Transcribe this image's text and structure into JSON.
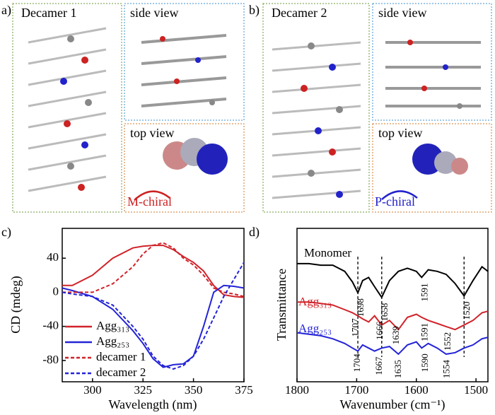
{
  "panel_a": {
    "letter": "a)",
    "main": "Decamer 1",
    "side": "side view",
    "top": "top view",
    "chirality": "M-chiral"
  },
  "panel_b": {
    "letter": "b)",
    "main": "Decamer 2",
    "side": "side view",
    "top": "top view",
    "chirality": "P-chiral"
  },
  "chart_data": [
    {
      "type": "line",
      "letter": "c)",
      "x_label": "Wavelength (nm)",
      "y_label": "CD (mdeg)",
      "x": [
        285,
        290,
        300,
        310,
        320,
        325,
        330,
        335,
        340,
        345,
        350,
        355,
        360,
        365,
        370,
        375
      ],
      "xlim": [
        285,
        375
      ],
      "xticks": [
        300,
        325,
        350,
        375
      ],
      "ylim": [
        -105,
        75
      ],
      "yticks": [
        40,
        0,
        -40,
        -80
      ],
      "legend": "lower left",
      "series": [
        {
          "name": "Agg₃₁₃",
          "color": "#d0232a",
          "dash": false,
          "values": [
            8,
            8,
            20,
            40,
            52,
            54,
            55,
            55,
            50,
            42,
            35,
            25,
            8,
            -3,
            -5,
            -6
          ]
        },
        {
          "name": "Agg₂₅₃",
          "color": "#2323d8",
          "dash": false,
          "values": [
            5,
            2,
            -5,
            -20,
            -45,
            -60,
            -78,
            -88,
            -85,
            -84,
            -75,
            -40,
            0,
            8,
            7,
            5
          ]
        },
        {
          "name": "decamer 1",
          "color": "#d0232a",
          "dash": true,
          "values": [
            0,
            0,
            0,
            10,
            30,
            45,
            55,
            58,
            52,
            40,
            32,
            20,
            5,
            0,
            -2,
            -5
          ]
        },
        {
          "name": "decamer 2",
          "color": "#2323d8",
          "dash": true,
          "values": [
            0,
            -2,
            -5,
            -15,
            -40,
            -55,
            -75,
            -86,
            -90,
            -86,
            -75,
            -55,
            -30,
            -5,
            15,
            35
          ]
        }
      ]
    },
    {
      "type": "line",
      "letter": "d)",
      "x_label": "Wavenumber (cm⁻¹)",
      "y_label": "Transmittance",
      "x": [
        1800,
        1780,
        1760,
        1740,
        1720,
        1707,
        1698,
        1690,
        1680,
        1670,
        1658,
        1645,
        1630,
        1615,
        1600,
        1591,
        1580,
        1565,
        1550,
        1535,
        1520,
        1505,
        1490,
        1480
      ],
      "xlim": [
        1800,
        1480
      ],
      "xticks": [
        1800,
        1700,
        1600,
        1500
      ],
      "ylim": [
        0,
        100
      ],
      "guides": [
        1698,
        1658,
        1520
      ],
      "series": [
        {
          "name": "Monomer",
          "color": "#000000",
          "values": [
            77,
            77,
            76,
            76,
            72,
            65,
            58,
            66,
            68,
            62,
            55,
            66,
            72,
            74,
            72,
            68,
            73,
            72,
            70,
            64,
            56,
            66,
            75,
            72
          ],
          "peaks": [
            1698,
            1658,
            1591,
            1520
          ]
        },
        {
          "name": "Agg₃₁₃",
          "color": "#d0232a",
          "values": [
            52,
            52,
            51,
            50,
            47,
            45,
            43,
            41,
            39,
            43,
            37,
            40,
            34,
            42,
            44,
            42,
            40,
            38,
            36,
            34,
            37,
            40,
            45,
            46
          ],
          "peaks": [
            1707,
            1666,
            1639,
            1591,
            1552
          ]
        },
        {
          "name": "Agg₂₅₃",
          "color": "#2323d8",
          "values": [
            32,
            31,
            30,
            28,
            25,
            22,
            20,
            24,
            22,
            20,
            22,
            23,
            18,
            24,
            26,
            22,
            25,
            22,
            18,
            19,
            22,
            24,
            28,
            29
          ],
          "peaks": [
            1704,
            1667,
            1635,
            1590,
            1554
          ]
        }
      ]
    }
  ]
}
